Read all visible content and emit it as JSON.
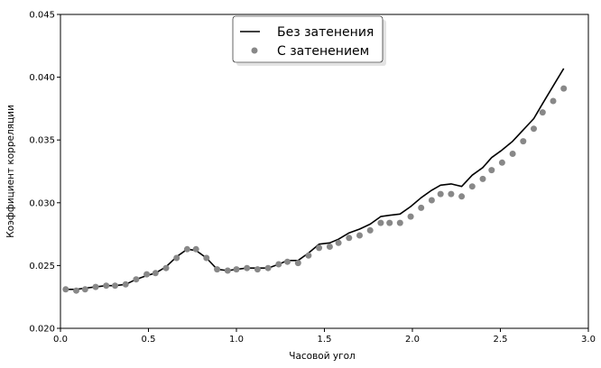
{
  "chart_data": {
    "type": "line",
    "xlabel": "Часовой угол",
    "ylabel": "Коэффициент корреляции",
    "xlim": [
      0.0,
      3.0
    ],
    "ylim": [
      0.02,
      0.045
    ],
    "x_ticks": [
      {
        "value": 0.0,
        "label": "0.0"
      },
      {
        "value": 0.5,
        "label": "0.5"
      },
      {
        "value": 1.0,
        "label": "1.0"
      },
      {
        "value": 1.5,
        "label": "1.5"
      },
      {
        "value": 2.0,
        "label": "2.0"
      },
      {
        "value": 2.5,
        "label": "2.5"
      },
      {
        "value": 3.0,
        "label": "3.0"
      }
    ],
    "y_ticks": [
      {
        "value": 0.02,
        "label": "0.020"
      },
      {
        "value": 0.025,
        "label": "0.025"
      },
      {
        "value": 0.03,
        "label": "0.030"
      },
      {
        "value": 0.035,
        "label": "0.035"
      },
      {
        "value": 0.04,
        "label": "0.040"
      },
      {
        "value": 0.045,
        "label": "0.045"
      }
    ],
    "grid": false,
    "legend_position": "top-center",
    "series": [
      {
        "name": "Без затенения",
        "style": "line",
        "color": "#000000",
        "x": [
          0.03,
          0.09,
          0.14,
          0.2,
          0.26,
          0.31,
          0.37,
          0.43,
          0.49,
          0.54,
          0.6,
          0.66,
          0.72,
          0.77,
          0.83,
          0.89,
          0.95,
          1.0,
          1.06,
          1.12,
          1.18,
          1.24,
          1.29,
          1.35,
          1.41,
          1.47,
          1.53,
          1.58,
          1.64,
          1.7,
          1.76,
          1.82,
          1.87,
          1.93,
          1.99,
          2.05,
          2.11,
          2.16,
          2.22,
          2.28,
          2.34,
          2.4,
          2.45,
          2.51,
          2.57,
          2.63,
          2.69,
          2.74,
          2.8,
          2.86
        ],
        "y": [
          0.0231,
          0.0231,
          0.0232,
          0.0233,
          0.0234,
          0.0234,
          0.0235,
          0.0239,
          0.0242,
          0.0244,
          0.0249,
          0.0257,
          0.0263,
          0.0262,
          0.0256,
          0.0247,
          0.0246,
          0.0247,
          0.0248,
          0.0248,
          0.0248,
          0.0251,
          0.0254,
          0.0254,
          0.026,
          0.0267,
          0.0268,
          0.0271,
          0.0276,
          0.0279,
          0.0283,
          0.0289,
          0.029,
          0.0291,
          0.0297,
          0.0304,
          0.031,
          0.0314,
          0.0315,
          0.0313,
          0.0322,
          0.0328,
          0.0336,
          0.0342,
          0.0349,
          0.0358,
          0.0367,
          0.0379,
          0.0393,
          0.0407
        ]
      },
      {
        "name": "С затенением",
        "style": "scatter",
        "color": "#888888",
        "x": [
          0.03,
          0.09,
          0.14,
          0.2,
          0.26,
          0.31,
          0.37,
          0.43,
          0.49,
          0.54,
          0.6,
          0.66,
          0.72,
          0.77,
          0.83,
          0.89,
          0.95,
          1.0,
          1.06,
          1.12,
          1.18,
          1.24,
          1.29,
          1.35,
          1.41,
          1.47,
          1.53,
          1.58,
          1.64,
          1.7,
          1.76,
          1.82,
          1.87,
          1.93,
          1.99,
          2.05,
          2.11,
          2.16,
          2.22,
          2.28,
          2.34,
          2.4,
          2.45,
          2.51,
          2.57,
          2.63,
          2.69,
          2.74,
          2.8,
          2.86
        ],
        "y": [
          0.0231,
          0.023,
          0.0231,
          0.0233,
          0.0234,
          0.0234,
          0.0235,
          0.0239,
          0.0243,
          0.0244,
          0.0248,
          0.0256,
          0.0263,
          0.0263,
          0.0256,
          0.0247,
          0.0246,
          0.0247,
          0.0248,
          0.0247,
          0.0248,
          0.0251,
          0.0253,
          0.0252,
          0.0258,
          0.0264,
          0.0265,
          0.0268,
          0.0272,
          0.0274,
          0.0278,
          0.0284,
          0.0284,
          0.0284,
          0.0289,
          0.0296,
          0.0302,
          0.0307,
          0.0307,
          0.0305,
          0.0313,
          0.0319,
          0.0326,
          0.0332,
          0.0339,
          0.0349,
          0.0359,
          0.0372,
          0.0381,
          0.0391
        ]
      }
    ]
  }
}
